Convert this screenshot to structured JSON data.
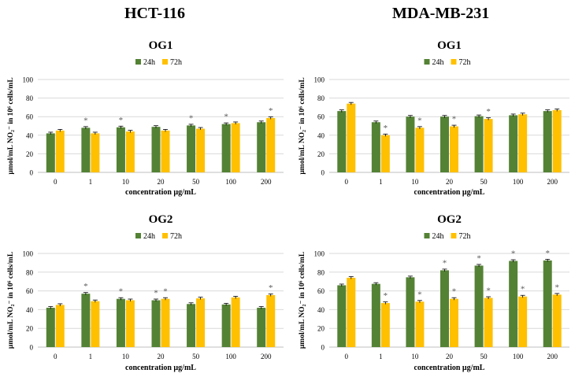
{
  "headers": {
    "left": "HCT-116",
    "right": "MDA-MB-231"
  },
  "colors": {
    "h24": "#548235",
    "h72": "#FFC000",
    "grid": "#D9D9D9",
    "axis": "#BFBFBF",
    "asterisk": "#595959"
  },
  "chart_data": [
    {
      "id": "hct-og1",
      "type": "bar",
      "title": "OG1",
      "xlabel": "concentration µg/mL",
      "ylabel": "µmol/mL NO₂⁻ in 10⁶ cells/mL",
      "ylim": [
        0,
        100
      ],
      "yticks": [
        0,
        20,
        40,
        60,
        80,
        100
      ],
      "categories": [
        "0",
        "1",
        "10",
        "20",
        "50",
        "100",
        "200"
      ],
      "legend_position": "top-center",
      "series": [
        {
          "name": "24h",
          "values": [
            42,
            48,
            48.5,
            49,
            50.5,
            52,
            54
          ],
          "significant": [
            false,
            true,
            true,
            false,
            true,
            true,
            false
          ]
        },
        {
          "name": "72h",
          "values": [
            45,
            42,
            44,
            45,
            47,
            53,
            58.5
          ],
          "significant": [
            false,
            false,
            false,
            false,
            false,
            false,
            true
          ]
        }
      ]
    },
    {
      "id": "mda-og1",
      "type": "bar",
      "title": "OG1",
      "xlabel": "concentration µg/mL",
      "ylabel": "µmol/mL NO₂⁻ in 10⁶ cells/mL",
      "ylim": [
        0,
        100
      ],
      "yticks": [
        0,
        20,
        40,
        60,
        80,
        100
      ],
      "categories": [
        "0",
        "1",
        "10",
        "20",
        "50",
        "100",
        "200"
      ],
      "legend_position": "top-center",
      "series": [
        {
          "name": "24h",
          "values": [
            66,
            54,
            60,
            60,
            60.5,
            61.5,
            66
          ],
          "significant": [
            false,
            false,
            false,
            false,
            false,
            false,
            false
          ]
        },
        {
          "name": "72h",
          "values": [
            74,
            40,
            48,
            49.5,
            57.5,
            62.5,
            67
          ],
          "significant": [
            false,
            true,
            true,
            true,
            true,
            false,
            false
          ]
        }
      ]
    },
    {
      "id": "hct-og2",
      "type": "bar",
      "title": "OG2",
      "xlabel": "concentration µg/mL",
      "ylabel": "µmol/mL NO₂⁻ in 10⁶ cells/mL",
      "ylim": [
        0,
        100
      ],
      "yticks": [
        0,
        20,
        40,
        60,
        80,
        100
      ],
      "categories": [
        "0",
        "1",
        "10",
        "20",
        "50",
        "100",
        "200"
      ],
      "legend_position": "top-center",
      "series": [
        {
          "name": "24h",
          "values": [
            42,
            57,
            51.5,
            50,
            46,
            45.5,
            42
          ],
          "significant": [
            false,
            true,
            true,
            true,
            false,
            false,
            false
          ]
        },
        {
          "name": "72h",
          "values": [
            45,
            49,
            50,
            51.5,
            52,
            53,
            55.5
          ],
          "significant": [
            false,
            false,
            false,
            true,
            false,
            false,
            true
          ]
        }
      ]
    },
    {
      "id": "mda-og2",
      "type": "bar",
      "title": "OG2",
      "xlabel": "concentration µg/mL",
      "ylabel": "µmol/mL NO₂⁻ in 10⁶ cells/mL",
      "ylim": [
        0,
        100
      ],
      "yticks": [
        0,
        20,
        40,
        60,
        80,
        100
      ],
      "categories": [
        "0",
        "1",
        "10",
        "20",
        "50",
        "100",
        "200"
      ],
      "legend_position": "top-center",
      "series": [
        {
          "name": "24h",
          "values": [
            66,
            67.5,
            74.5,
            82,
            87,
            92,
            92.5
          ],
          "significant": [
            false,
            false,
            false,
            true,
            true,
            true,
            true
          ]
        },
        {
          "name": "72h",
          "values": [
            74,
            47,
            48.5,
            51.5,
            52.5,
            54,
            56
          ],
          "significant": [
            false,
            true,
            true,
            true,
            true,
            true,
            true
          ]
        }
      ]
    }
  ]
}
